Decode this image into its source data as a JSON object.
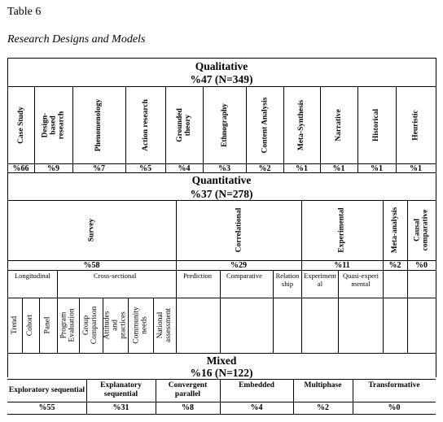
{
  "table_label": "Table 6",
  "table_title": "Research Designs and Models",
  "qualitative": {
    "title": "Qualitative",
    "summary": "%47 (N=349)",
    "designs": [
      {
        "name": "Case Study",
        "pct": "%66"
      },
      {
        "name": "Design-based research",
        "pct": "%9"
      },
      {
        "name": "Phenomenology",
        "pct": "%7"
      },
      {
        "name": "Action research",
        "pct": "%5"
      },
      {
        "name": "Grounded theory",
        "pct": "%4"
      },
      {
        "name": "Ethnography",
        "pct": "%3"
      },
      {
        "name": "Content Analysis",
        "pct": "%2"
      },
      {
        "name": "Meta-Synthesis",
        "pct": "%1"
      },
      {
        "name": "Narrative",
        "pct": "%1"
      },
      {
        "name": "Historical",
        "pct": "%1"
      },
      {
        "name": "Heuristic",
        "pct": "%1"
      }
    ]
  },
  "quantitative": {
    "title": "Quantitative",
    "summary": "%37 (N=278)",
    "designs": [
      {
        "name": "Survey",
        "pct": "%58"
      },
      {
        "name": "Correlational",
        "pct": "%29"
      },
      {
        "name": "Experimental",
        "pct": "%11"
      },
      {
        "name": "Meta-analysis",
        "pct": "%2"
      },
      {
        "name": "Causal comparative",
        "pct": "%0"
      }
    ],
    "subtypes": {
      "longitudinal": "Longitudinal",
      "cross_sectional": "Cross-sectional",
      "prediction": "Prediction",
      "comparative": "Comparative",
      "relationship": "Relationship",
      "experimental": "Experimental",
      "quasi_experimental": "Quasi-experimental"
    },
    "longitudinal_items": [
      "Trend",
      "Cohort",
      "Panel"
    ],
    "cross_sectional_items": [
      "Program Evaluation",
      "Group Comparison",
      "Attitudes and practices",
      "Community needs",
      "National assessment"
    ]
  },
  "mixed": {
    "title": "Mixed",
    "summary": "%16 (N=122)",
    "designs": [
      {
        "name": "Exploratory sequential",
        "pct": "%55"
      },
      {
        "name": "Explanatory sequential",
        "pct": "%31"
      },
      {
        "name": "Convergent parallel",
        "pct": "%8"
      },
      {
        "name": "Embedded",
        "pct": "%4"
      },
      {
        "name": "Multiphase",
        "pct": "%2"
      },
      {
        "name": "Transformative",
        "pct": "%0"
      }
    ]
  }
}
